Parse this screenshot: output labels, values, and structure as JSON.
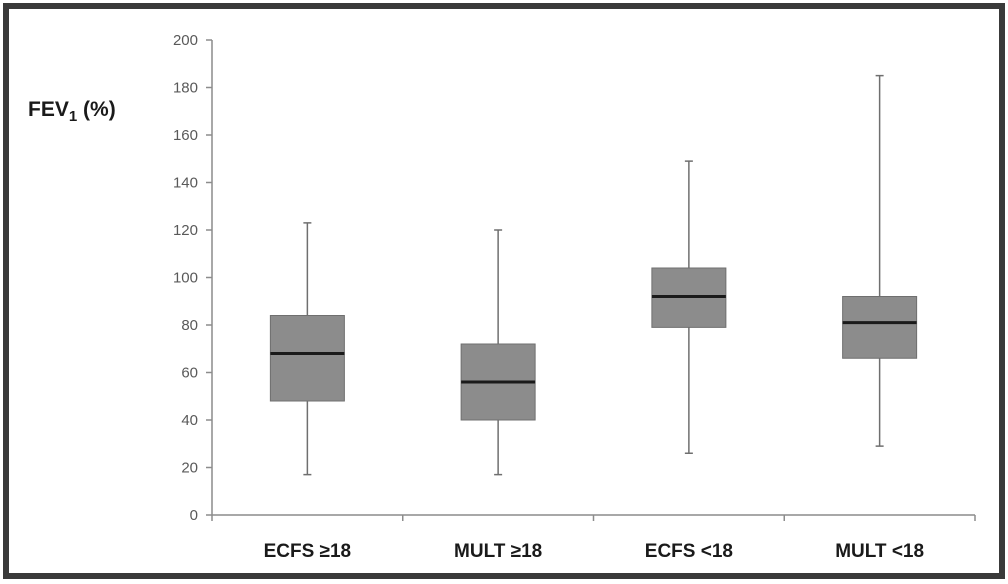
{
  "chart_data": {
    "type": "boxplot",
    "ylabel": {
      "main": "FEV",
      "subscript": "1",
      "suffix": " (%)"
    },
    "ylim": [
      0,
      200
    ],
    "yticks": [
      0,
      20,
      40,
      60,
      80,
      100,
      120,
      140,
      160,
      180,
      200
    ],
    "grid": false,
    "legend": "none",
    "colors": {
      "box_fill": "#8c8c8c",
      "box_stroke": "#6f6f6f",
      "median": "#1a1a1a",
      "whisker": "#6f6f6f",
      "axis": "#8c8c8c"
    },
    "categories": [
      "ECFS ≥18",
      "MULT ≥18",
      "ECFS <18",
      "MULT <18"
    ],
    "boxes": [
      {
        "category": "ECFS ≥18",
        "min": 17,
        "q1": 48,
        "median": 68,
        "q3": 84,
        "max": 123
      },
      {
        "category": "MULT ≥18",
        "min": 17,
        "q1": 40,
        "median": 56,
        "q3": 72,
        "max": 120
      },
      {
        "category": "ECFS <18",
        "min": 26,
        "q1": 79,
        "median": 92,
        "q3": 104,
        "max": 149
      },
      {
        "category": "MULT <18",
        "min": 29,
        "q1": 66,
        "median": 81,
        "q3": 92,
        "max": 185
      }
    ]
  }
}
